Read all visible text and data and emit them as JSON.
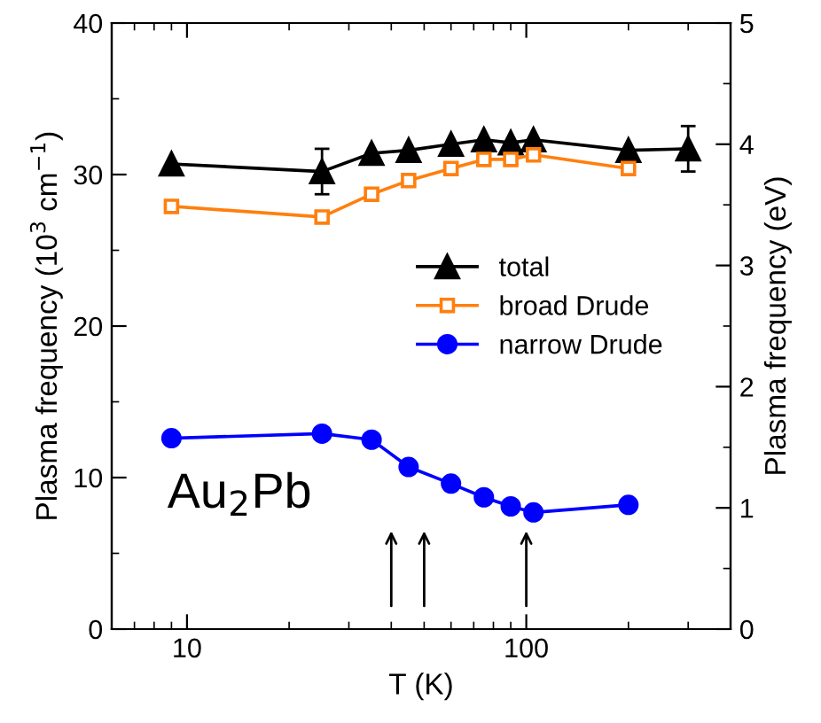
{
  "chart_data": {
    "type": "line",
    "xlabel": "T (K)",
    "ylabel": "Plasma frequency (10$^{3}$ cm$^{−1}$)",
    "y2label": "Plasma frequency (eV)",
    "log": "x",
    "xlim": [
      6,
      400
    ],
    "xticks": [
      10,
      100
    ],
    "ylim": [
      0,
      40
    ],
    "yticks": [
      0,
      10,
      20,
      30,
      40
    ],
    "y2lim": [
      0,
      5
    ],
    "y2ticks": [
      0,
      1,
      2,
      3,
      4,
      5
    ],
    "grid": false,
    "legend": "center right",
    "line_style": "solid",
    "annotations": [
      "Au$_{2}$Pb"
    ],
    "series": [
      {
        "name": "total",
        "color": "#000000",
        "marker": "triangle",
        "x": [
          9,
          25,
          35,
          45,
          60,
          75,
          90,
          105,
          200,
          300
        ],
        "values": [
          30.7,
          30.2,
          31.4,
          31.6,
          32.0,
          32.3,
          32.1,
          32.3,
          31.6,
          31.7
        ],
        "errors": [
          null,
          1.5,
          null,
          null,
          null,
          null,
          null,
          null,
          null,
          1.5
        ]
      },
      {
        "name": "broad Drude",
        "color": "#ff7f0e",
        "marker": "square",
        "x": [
          9,
          25,
          35,
          45,
          60,
          75,
          90,
          105,
          200
        ],
        "values": [
          27.9,
          27.2,
          28.7,
          29.6,
          30.4,
          31.0,
          31.0,
          31.3,
          30.4
        ]
      },
      {
        "name": "narrow Drude",
        "color": "#0000ff",
        "marker": "circle",
        "x": [
          9,
          25,
          35,
          45,
          60,
          75,
          90,
          105,
          200
        ],
        "values": [
          12.6,
          12.9,
          12.5,
          10.7,
          9.6,
          8.7,
          8.1,
          7.7,
          8.2
        ]
      }
    ]
  }
}
